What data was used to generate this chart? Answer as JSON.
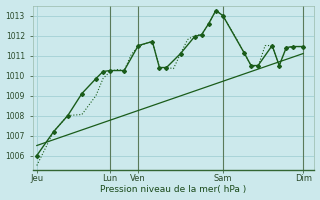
{
  "xlabel": "Pression niveau de la mer( hPa )",
  "background_color": "#cce9ec",
  "grid_color": "#a8d4d8",
  "line_color": "#1a5c1a",
  "vline_color": "#5a7a5a",
  "ylim": [
    1005.3,
    1013.5
  ],
  "yticks": [
    1006,
    1007,
    1008,
    1009,
    1010,
    1011,
    1012,
    1013
  ],
  "xlim": [
    0,
    20
  ],
  "xtick_positions": [
    0.3,
    5.5,
    7.5,
    13.5,
    19.2
  ],
  "xtick_labels": [
    "Jeu",
    "Lun",
    "Ven",
    "Sam",
    "Dim"
  ],
  "vlines": [
    5.5,
    7.5,
    13.5,
    19.2
  ],
  "dotted_x": [
    0.3,
    1.5,
    2.5,
    3.5,
    4.5,
    5.0,
    5.5,
    6.0,
    6.5,
    7.0,
    7.5,
    8.0,
    8.5,
    9.0,
    9.5,
    10.0,
    10.5,
    11.0,
    11.5,
    12.0,
    12.5,
    13.0,
    13.5,
    14.5,
    15.0,
    15.5,
    16.0,
    16.5,
    17.0,
    17.5,
    18.0,
    18.5,
    19.2
  ],
  "dotted_y": [
    1005.5,
    1007.2,
    1008.0,
    1008.05,
    1009.0,
    1009.85,
    1010.2,
    1010.3,
    1010.25,
    1011.05,
    1011.45,
    1011.6,
    1011.7,
    1010.4,
    1010.4,
    1010.35,
    1011.1,
    1011.8,
    1012.0,
    1012.05,
    1012.6,
    1013.25,
    1013.0,
    1011.8,
    1011.15,
    1010.5,
    1010.45,
    1011.5,
    1011.5,
    1010.45,
    1011.4,
    1011.45,
    1011.45
  ],
  "main_x": [
    0.3,
    1.5,
    2.5,
    3.5,
    4.5,
    5.0,
    5.5,
    6.5,
    7.5,
    8.5,
    9.0,
    9.5,
    10.5,
    11.5,
    12.0,
    12.5,
    13.0,
    13.5,
    15.0,
    15.5,
    16.0,
    17.0,
    17.5,
    18.0,
    18.5,
    19.2
  ],
  "main_y": [
    1006.0,
    1007.2,
    1008.0,
    1009.1,
    1009.85,
    1010.2,
    1010.25,
    1010.25,
    1011.5,
    1011.7,
    1010.4,
    1010.4,
    1011.1,
    1011.95,
    1012.05,
    1012.6,
    1013.25,
    1013.0,
    1011.15,
    1010.5,
    1010.5,
    1011.5,
    1010.5,
    1011.4,
    1011.45,
    1011.45
  ],
  "trend_x": [
    0.3,
    19.2
  ],
  "trend_y": [
    1006.5,
    1011.1
  ]
}
